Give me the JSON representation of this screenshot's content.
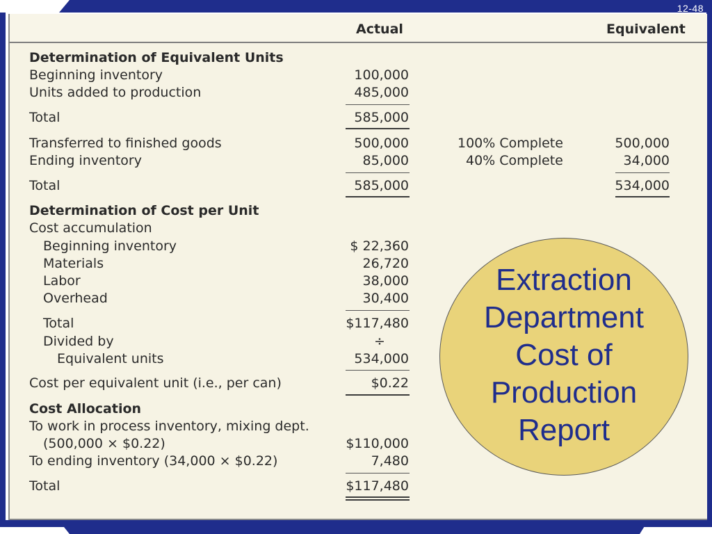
{
  "slide": {
    "number": "12-48"
  },
  "header": {
    "actual": "Actual",
    "equivalent": "Equivalent"
  },
  "sections": {
    "eq_units": "Determination of Equivalent Units",
    "cost_per_unit": "Determination of Cost per Unit",
    "cost_allocation": "Cost Allocation"
  },
  "rows": {
    "beg_inv": {
      "label": "Beginning inventory",
      "actual": "100,000"
    },
    "units_added": {
      "label": "Units added to production",
      "actual": "485,000"
    },
    "total1": {
      "label": "Total",
      "actual": "585,000"
    },
    "transferred": {
      "label": "Transferred to finished goods",
      "actual": "500,000",
      "complete": "100% Complete",
      "equivalent": "500,000"
    },
    "ending_inv": {
      "label": "Ending inventory",
      "actual": "85,000",
      "complete": "40% Complete",
      "equivalent": "34,000"
    },
    "total2": {
      "label": "Total",
      "actual": "585,000",
      "equivalent": "534,000"
    },
    "cost_accum": {
      "label": "Cost accumulation"
    },
    "cost_beg_inv": {
      "label": "Beginning inventory",
      "actual": "$ 22,360"
    },
    "materials": {
      "label": "Materials",
      "actual": "26,720"
    },
    "labor": {
      "label": "Labor",
      "actual": "38,000"
    },
    "overhead": {
      "label": "Overhead",
      "actual": "30,400"
    },
    "cost_total": {
      "label": "Total",
      "actual": "$117,480"
    },
    "divided_by": {
      "label": "Divided by",
      "actual": "÷"
    },
    "equiv_units": {
      "label": "Equivalent units",
      "actual": "534,000"
    },
    "cost_per_equiv": {
      "label": "Cost per equivalent unit (i.e., per can)",
      "actual": "$0.22"
    },
    "to_wip": {
      "label": "To work in process inventory, mixing dept."
    },
    "to_wip_calc": {
      "label": "(500,000 × $0.22)",
      "actual": "$110,000"
    },
    "to_ending": {
      "label": "To ending inventory (34,000 × $0.22)",
      "actual": "7,480"
    },
    "alloc_total": {
      "label": "Total",
      "actual": "$117,480"
    }
  },
  "callout": {
    "line1": "Extraction",
    "line2": "Department",
    "line3": "Cost of",
    "line4": "Production",
    "line5": "Report",
    "fill_color": "#e9d37a",
    "text_color": "#1f2d8c"
  }
}
